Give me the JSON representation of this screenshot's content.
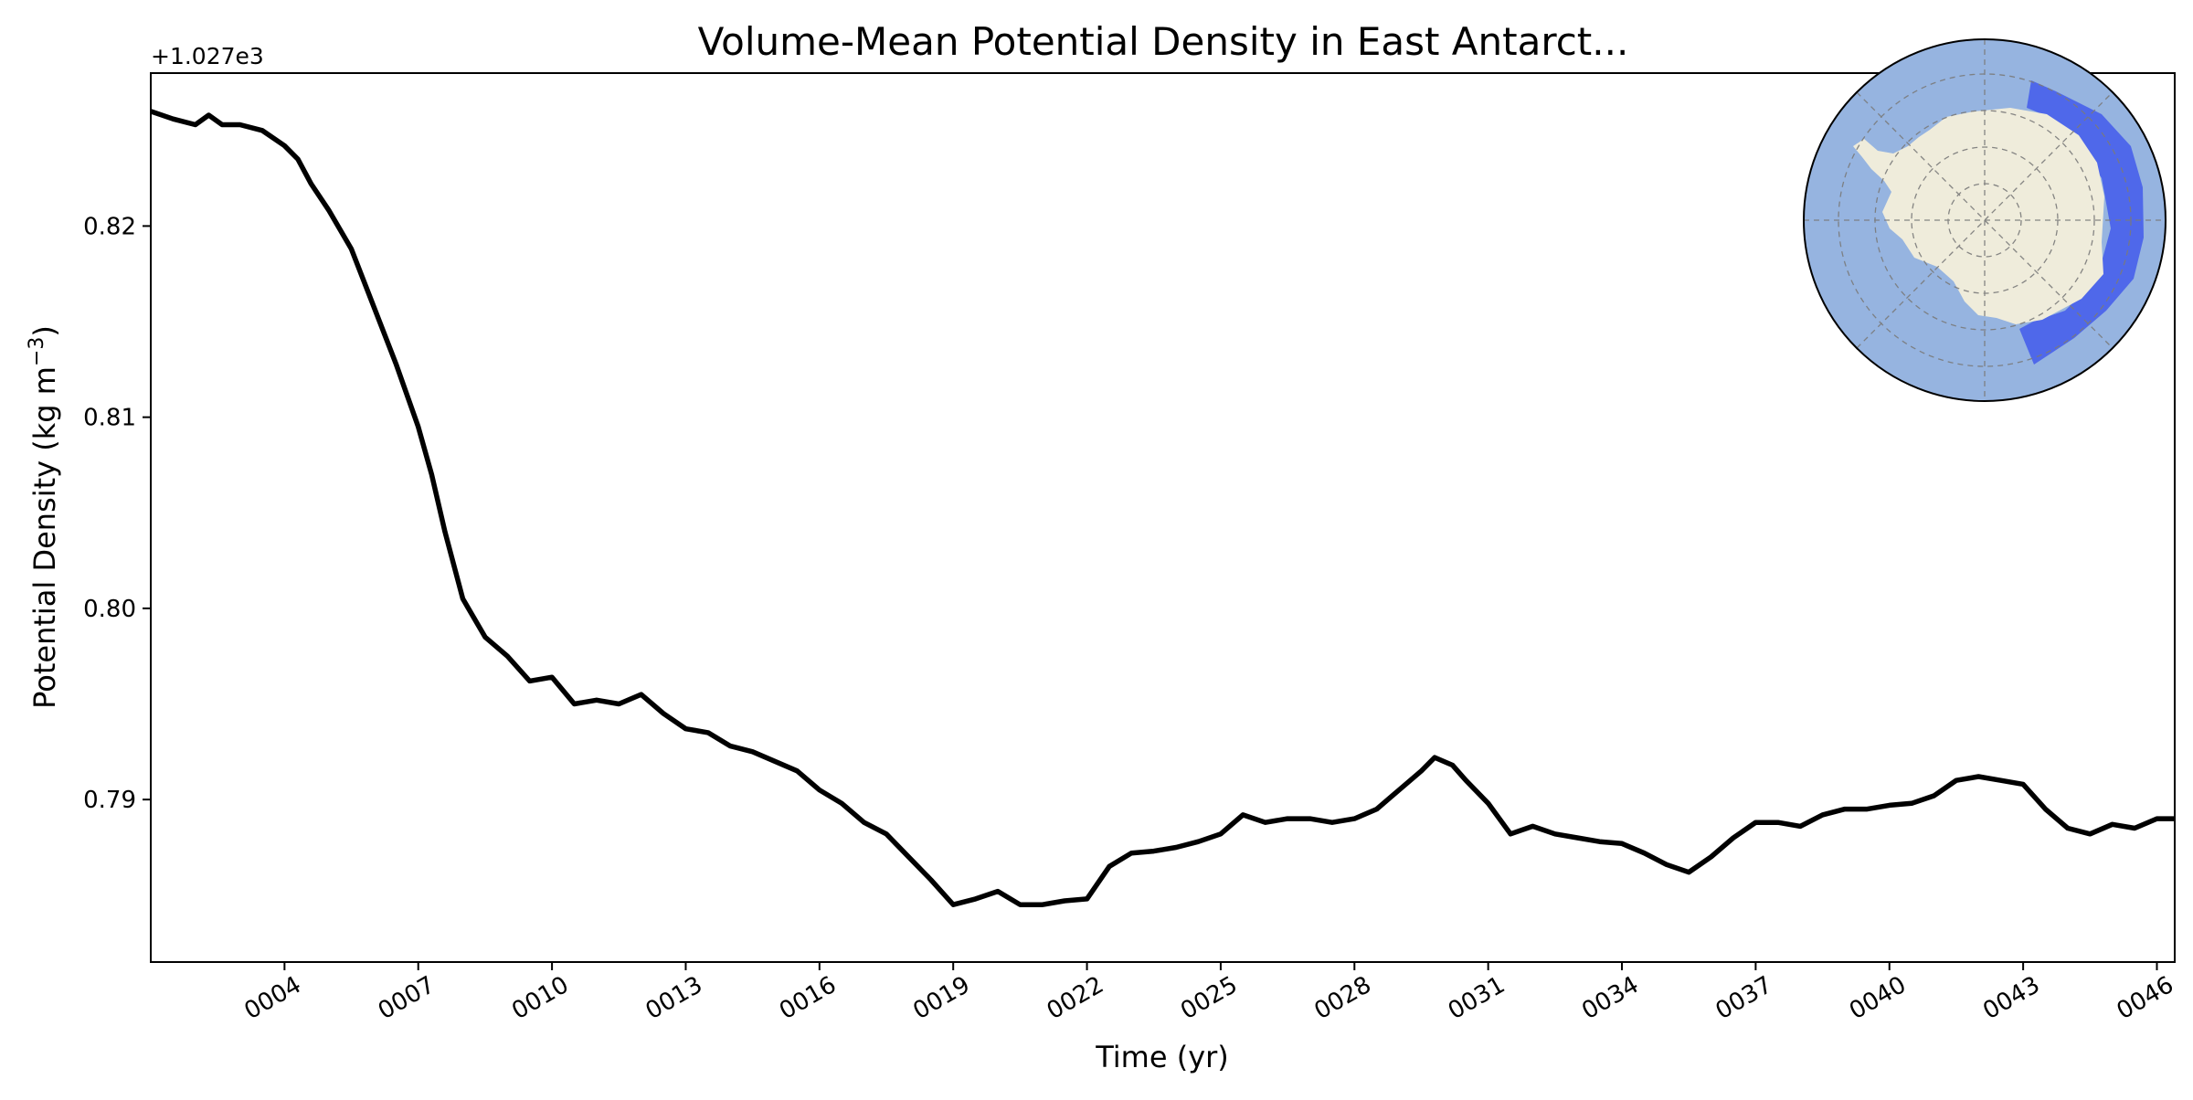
{
  "chart_data": {
    "type": "line",
    "title": "Volume-Mean Potential Density in East Antarct...",
    "xlabel": "Time (yr)",
    "ylabel_main": "Potential Density (kg m",
    "ylabel_exp": "−3",
    "ylabel_close": ")",
    "offset_text": "+1.027e3",
    "xlim": [
      1,
      46.4
    ],
    "ylim": [
      0.7815,
      0.828
    ],
    "x_ticks": [
      4,
      7,
      10,
      13,
      16,
      19,
      22,
      25,
      28,
      31,
      34,
      37,
      40,
      43,
      46
    ],
    "x_tick_labels": [
      "0004",
      "0007",
      "0010",
      "0013",
      "0016",
      "0019",
      "0022",
      "0025",
      "0028",
      "0031",
      "0034",
      "0037",
      "0040",
      "0043",
      "0046"
    ],
    "y_ticks": [
      0.79,
      0.8,
      0.81,
      0.82
    ],
    "y_tick_labels": [
      "0.79",
      "0.80",
      "0.81",
      "0.82"
    ],
    "grid": false,
    "series": [
      {
        "color": "#000000",
        "points": [
          [
            1.0,
            0.826
          ],
          [
            1.5,
            0.8256
          ],
          [
            2.0,
            0.8253
          ],
          [
            2.3,
            0.8258
          ],
          [
            2.6,
            0.8253
          ],
          [
            3.0,
            0.8253
          ],
          [
            3.5,
            0.825
          ],
          [
            4.0,
            0.8242
          ],
          [
            4.3,
            0.8235
          ],
          [
            4.6,
            0.8222
          ],
          [
            5.0,
            0.8208
          ],
          [
            5.5,
            0.8188
          ],
          [
            6.0,
            0.8158
          ],
          [
            6.5,
            0.8128
          ],
          [
            7.0,
            0.8095
          ],
          [
            7.3,
            0.807
          ],
          [
            7.6,
            0.804
          ],
          [
            8.0,
            0.8005
          ],
          [
            8.5,
            0.7985
          ],
          [
            9.0,
            0.7975
          ],
          [
            9.5,
            0.7962
          ],
          [
            10.0,
            0.7964
          ],
          [
            10.5,
            0.795
          ],
          [
            11.0,
            0.7952
          ],
          [
            11.5,
            0.795
          ],
          [
            12.0,
            0.7955
          ],
          [
            12.5,
            0.7945
          ],
          [
            13.0,
            0.7937
          ],
          [
            13.5,
            0.7935
          ],
          [
            14.0,
            0.7928
          ],
          [
            14.5,
            0.7925
          ],
          [
            15.0,
            0.792
          ],
          [
            15.5,
            0.7915
          ],
          [
            16.0,
            0.7905
          ],
          [
            16.5,
            0.7898
          ],
          [
            17.0,
            0.7888
          ],
          [
            17.5,
            0.7882
          ],
          [
            18.0,
            0.787
          ],
          [
            18.5,
            0.7858
          ],
          [
            19.0,
            0.7845
          ],
          [
            19.5,
            0.7848
          ],
          [
            20.0,
            0.7852
          ],
          [
            20.5,
            0.7845
          ],
          [
            21.0,
            0.7845
          ],
          [
            21.5,
            0.7847
          ],
          [
            22.0,
            0.7848
          ],
          [
            22.5,
            0.7865
          ],
          [
            23.0,
            0.7872
          ],
          [
            23.5,
            0.7873
          ],
          [
            24.0,
            0.7875
          ],
          [
            24.5,
            0.7878
          ],
          [
            25.0,
            0.7882
          ],
          [
            25.5,
            0.7892
          ],
          [
            26.0,
            0.7888
          ],
          [
            26.5,
            0.789
          ],
          [
            27.0,
            0.789
          ],
          [
            27.5,
            0.7888
          ],
          [
            28.0,
            0.789
          ],
          [
            28.5,
            0.7895
          ],
          [
            29.0,
            0.7905
          ],
          [
            29.5,
            0.7915
          ],
          [
            29.8,
            0.7922
          ],
          [
            30.2,
            0.7918
          ],
          [
            30.5,
            0.791
          ],
          [
            31.0,
            0.7898
          ],
          [
            31.5,
            0.7882
          ],
          [
            32.0,
            0.7886
          ],
          [
            32.5,
            0.7882
          ],
          [
            33.0,
            0.788
          ],
          [
            33.5,
            0.7878
          ],
          [
            34.0,
            0.7877
          ],
          [
            34.5,
            0.7872
          ],
          [
            35.0,
            0.7866
          ],
          [
            35.5,
            0.7862
          ],
          [
            36.0,
            0.787
          ],
          [
            36.5,
            0.788
          ],
          [
            37.0,
            0.7888
          ],
          [
            37.5,
            0.7888
          ],
          [
            38.0,
            0.7886
          ],
          [
            38.5,
            0.7892
          ],
          [
            39.0,
            0.7895
          ],
          [
            39.5,
            0.7895
          ],
          [
            40.0,
            0.7897
          ],
          [
            40.5,
            0.7898
          ],
          [
            41.0,
            0.7902
          ],
          [
            41.5,
            0.791
          ],
          [
            42.0,
            0.7912
          ],
          [
            42.5,
            0.791
          ],
          [
            43.0,
            0.7908
          ],
          [
            43.5,
            0.7895
          ],
          [
            44.0,
            0.7885
          ],
          [
            44.5,
            0.7882
          ],
          [
            45.0,
            0.7887
          ],
          [
            45.5,
            0.7885
          ],
          [
            46.0,
            0.789
          ],
          [
            46.4,
            0.789
          ]
        ]
      }
    ],
    "inset_map": {
      "projection": "south-polar-stereographic",
      "ocean_color": "#96b4e0",
      "land_color": "#efecdb",
      "region_color": "#3d55ec",
      "region_label": "East Antarctic sector highlight"
    }
  }
}
